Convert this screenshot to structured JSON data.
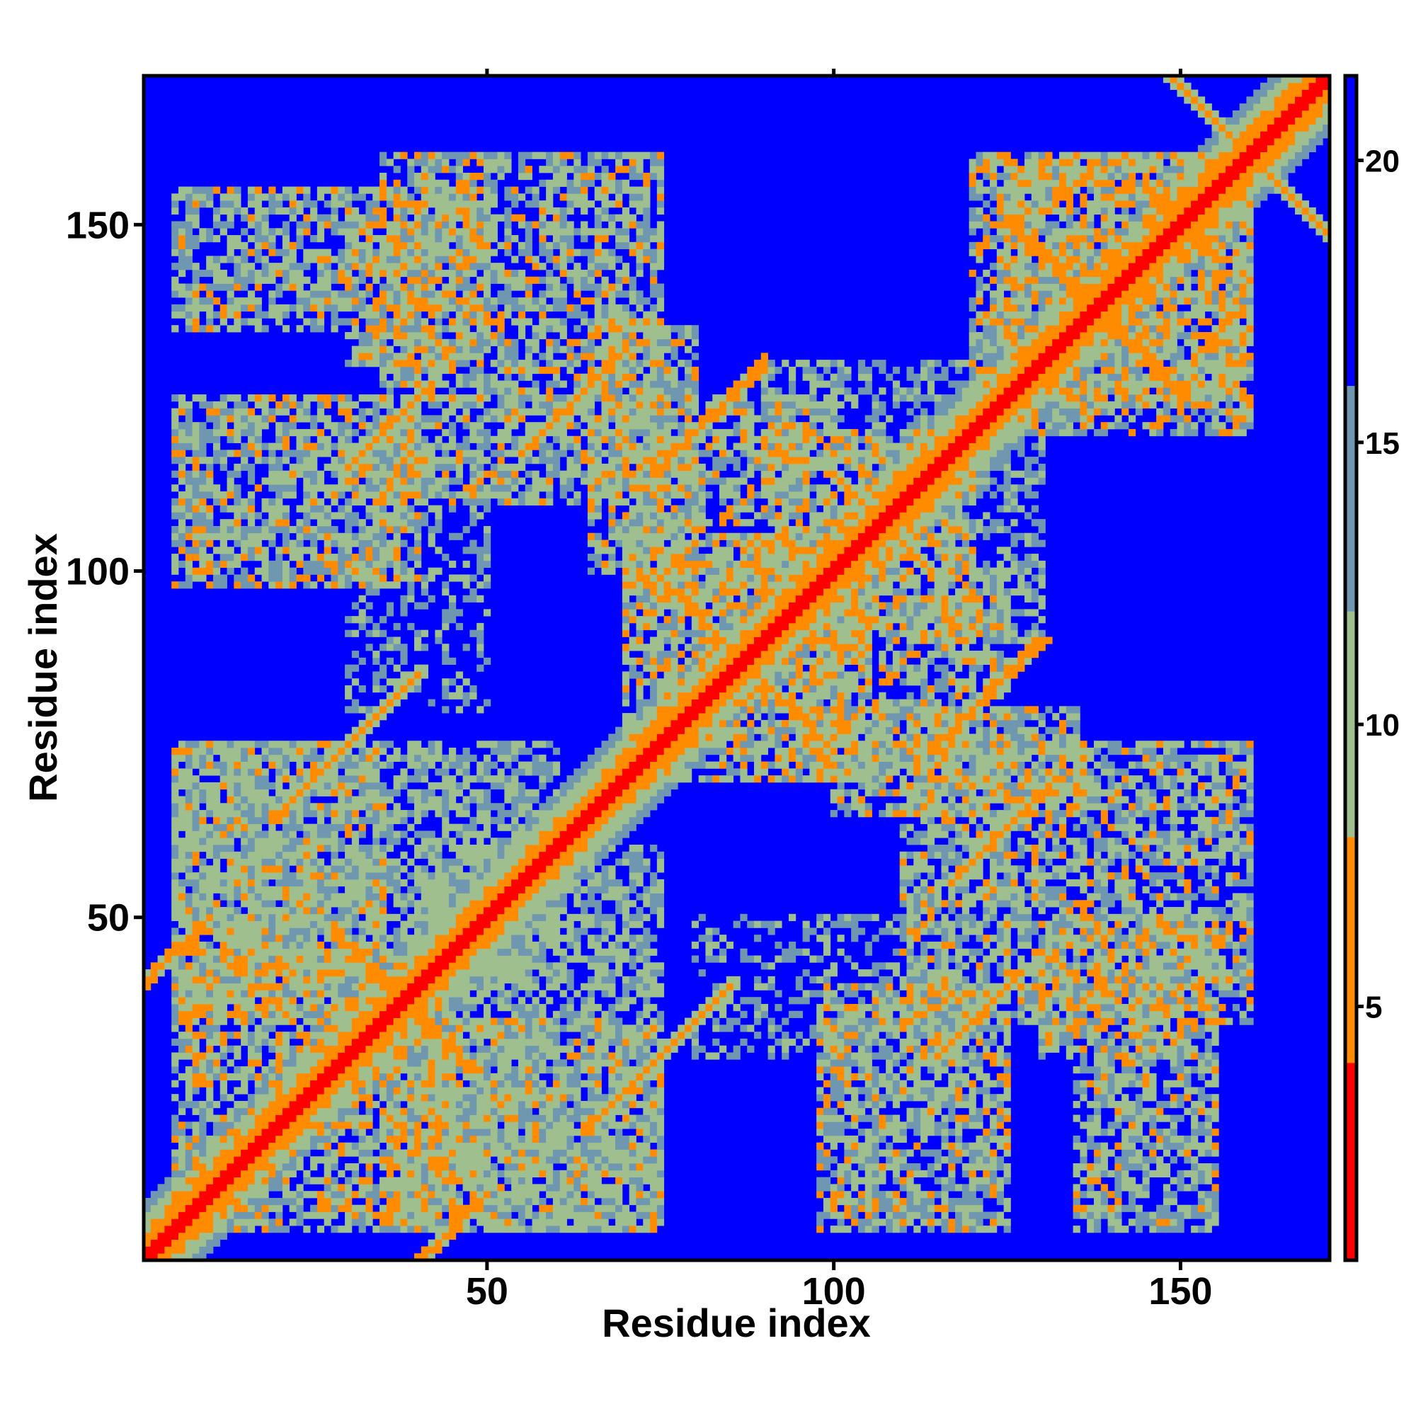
{
  "chart_data": {
    "type": "heatmap",
    "title": "",
    "xlabel": "Residue index",
    "ylabel": "Residue index",
    "xlim": [
      1,
      171
    ],
    "ylim": [
      1,
      171
    ],
    "x_ticks": [
      {
        "value": 50,
        "label": "50"
      },
      {
        "value": 100,
        "label": "100"
      },
      {
        "value": 150,
        "label": "150"
      }
    ],
    "y_ticks": [
      {
        "value": 50,
        "label": "50"
      },
      {
        "value": 100,
        "label": "100"
      },
      {
        "value": 150,
        "label": "150"
      }
    ],
    "colorbar": {
      "range": [
        0.5,
        21.5
      ],
      "ticks": [
        {
          "value": 5,
          "label": "5"
        },
        {
          "value": 10,
          "label": "10"
        },
        {
          "value": 15,
          "label": "15"
        },
        {
          "value": 20,
          "label": "20"
        }
      ],
      "colors": [
        {
          "max": 4,
          "color": "#ff0000"
        },
        {
          "max": 8,
          "color": "#ff8c00"
        },
        {
          "max": 12,
          "color": "#9fbf8f"
        },
        {
          "max": 16,
          "color": "#6f97b0"
        },
        {
          "max": 99,
          "color": "#0000ff"
        }
      ]
    },
    "cutoff": 12,
    "background_value": 21,
    "diagonal": {
      "band_width": 8
    },
    "contact_regions": [
      {
        "x": [
          5,
          45
        ],
        "y": [
          5,
          45
        ],
        "min": 6,
        "density": 0.45
      },
      {
        "x": [
          35,
          75
        ],
        "y": [
          5,
          35
        ],
        "min": 7,
        "density": 0.5
      },
      {
        "x": [
          5,
          35
        ],
        "y": [
          35,
          75
        ],
        "min": 7,
        "density": 0.5
      },
      {
        "x": [
          5,
          60
        ],
        "y": [
          40,
          75
        ],
        "min": 8,
        "density": 0.4
      },
      {
        "x": [
          40,
          75
        ],
        "y": [
          5,
          60
        ],
        "min": 8,
        "density": 0.4
      },
      {
        "x": [
          80,
          120
        ],
        "y": [
          30,
          50
        ],
        "min": 10,
        "density": 0.2
      },
      {
        "x": [
          30,
          50
        ],
        "y": [
          80,
          120
        ],
        "min": 10,
        "density": 0.2
      },
      {
        "x": [
          98,
          125
        ],
        "y": [
          5,
          40
        ],
        "min": 7,
        "density": 0.5
      },
      {
        "x": [
          5,
          40
        ],
        "y": [
          98,
          125
        ],
        "min": 7,
        "density": 0.5
      },
      {
        "x": [
          135,
          155
        ],
        "y": [
          5,
          30
        ],
        "min": 7,
        "density": 0.45
      },
      {
        "x": [
          5,
          30
        ],
        "y": [
          135,
          155
        ],
        "min": 7,
        "density": 0.45
      },
      {
        "x": [
          110,
          160
        ],
        "y": [
          35,
          75
        ],
        "min": 7,
        "density": 0.45
      },
      {
        "x": [
          35,
          75
        ],
        "y": [
          110,
          160
        ],
        "min": 7,
        "density": 0.45
      },
      {
        "x": [
          70,
          105
        ],
        "y": [
          70,
          105
        ],
        "min": 6,
        "density": 0.45
      },
      {
        "x": [
          90,
          120
        ],
        "y": [
          90,
          120
        ],
        "min": 6,
        "density": 0.45
      },
      {
        "x": [
          95,
          125
        ],
        "y": [
          70,
          100
        ],
        "min": 7,
        "density": 0.4
      },
      {
        "x": [
          70,
          100
        ],
        "y": [
          95,
          125
        ],
        "min": 7,
        "density": 0.4
      },
      {
        "x": [
          65,
          80
        ],
        "y": [
          100,
          135
        ],
        "min": 7,
        "density": 0.45
      },
      {
        "x": [
          100,
          135
        ],
        "y": [
          65,
          80
        ],
        "min": 7,
        "density": 0.45
      },
      {
        "x": [
          30,
          50
        ],
        "y": [
          130,
          155
        ],
        "min": 6,
        "density": 0.5
      },
      {
        "x": [
          130,
          155
        ],
        "y": [
          30,
          50
        ],
        "min": 6,
        "density": 0.5
      },
      {
        "x": [
          120,
          160
        ],
        "y": [
          125,
          160
        ],
        "min": 6,
        "density": 0.45
      },
      {
        "x": [
          125,
          160
        ],
        "y": [
          120,
          160
        ],
        "min": 6,
        "density": 0.45
      },
      {
        "x": [
          90,
          120
        ],
        "y": [
          115,
          130
        ],
        "min": 9,
        "density": 0.35
      },
      {
        "x": [
          115,
          130
        ],
        "y": [
          90,
          120
        ],
        "min": 9,
        "density": 0.35
      }
    ],
    "antidiagonal_strands": [
      {
        "center": 38,
        "x": [
          28,
          46
        ],
        "value": 5
      },
      {
        "center": 138,
        "x": [
          125,
          146
        ],
        "value": 5
      },
      {
        "center": 87,
        "x": [
          76,
          100
        ],
        "value": 6
      },
      {
        "center": 107,
        "x": [
          100,
          112
        ],
        "value": 6
      },
      {
        "center": 160,
        "x": [
          140,
          165
        ],
        "value": 6
      }
    ],
    "parallel_strands": [
      {
        "offset": 40,
        "x": [
          75,
          90
        ],
        "value": 5
      },
      {
        "offset": -40,
        "x": [
          35,
          50
        ],
        "value": 5
      },
      {
        "offset": 85,
        "x": [
          30,
          42
        ],
        "value": 6
      },
      {
        "offset": -85,
        "x": [
          115,
          127
        ],
        "value": 6
      },
      {
        "offset": 45,
        "x": [
          20,
          40
        ],
        "value": 6
      },
      {
        "offset": -45,
        "x": [
          65,
          85
        ],
        "value": 6
      },
      {
        "offset": 62,
        "x": [
          55,
          70
        ],
        "value": 6
      },
      {
        "offset": -62,
        "x": [
          117,
          132
        ],
        "value": 6
      }
    ],
    "grid": false,
    "legend": "none"
  }
}
